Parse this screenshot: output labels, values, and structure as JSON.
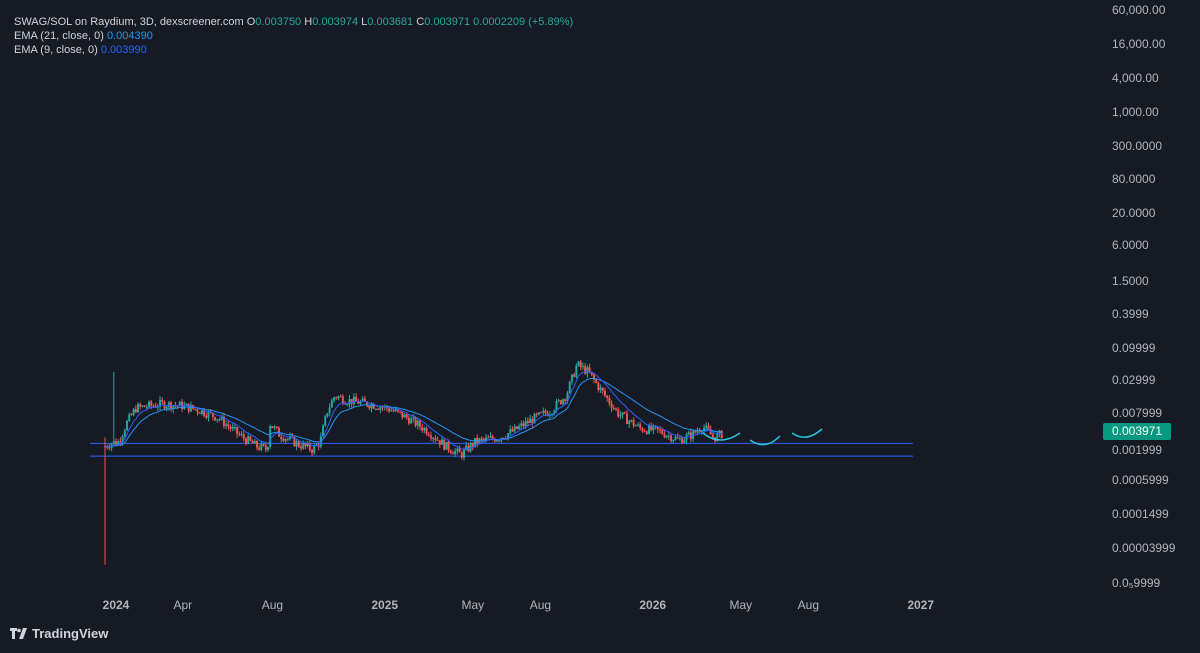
{
  "legend": {
    "title": "SWAG/SOL on Raydium, 3D, dexscreener.com",
    "ohlc": [
      {
        "key": "O",
        "value": "0.003750"
      },
      {
        "key": "H",
        "value": "0.003974"
      },
      {
        "key": "L",
        "value": "0.003681"
      },
      {
        "key": "C",
        "value": "0.003971"
      }
    ],
    "change": "0.0002209 (+5.89%)",
    "ema21_label": "EMA (21, close, 0)",
    "ema21_value": "0.004390",
    "ema9_label": "EMA (9, close, 0)",
    "ema9_value": "0.003990"
  },
  "last_price": "0.003971",
  "brand": "TradingView",
  "colors": {
    "background": "#161a25",
    "up": "#26a69a",
    "down": "#ef5350",
    "ema21": "#2962ff",
    "ema9": "#2196f3",
    "hline": "#2962ff",
    "annotation": "#26c6da",
    "badge": "#089981"
  },
  "chart_data": {
    "type": "candlestick",
    "scale": "log",
    "grid": false,
    "y_ticks": [
      "60,000.00",
      "16,000.00",
      "4,000.00",
      "1,000.00",
      "300.0000",
      "80.0000",
      "20.0000",
      "6.0000",
      "1.5000",
      "0.3999",
      "0.09999",
      "0.02999",
      "0.007999",
      "0.001999",
      "0.0005999",
      "0.0001499",
      "0.00003999",
      "0.0₅9999"
    ],
    "x_ticks": [
      {
        "label": "2024",
        "date": "2024-01-01",
        "bold": true
      },
      {
        "label": "Apr",
        "date": "2024-04-01",
        "bold": false
      },
      {
        "label": "Aug",
        "date": "2024-08-01",
        "bold": false
      },
      {
        "label": "2025",
        "date": "2025-01-01",
        "bold": true
      },
      {
        "label": "May",
        "date": "2025-05-01",
        "bold": false
      },
      {
        "label": "Aug",
        "date": "2025-08-01",
        "bold": false
      },
      {
        "label": "2026",
        "date": "2026-01-01",
        "bold": true
      },
      {
        "label": "May",
        "date": "2026-05-01",
        "bold": false
      },
      {
        "label": "Aug",
        "date": "2026-08-01",
        "bold": false
      },
      {
        "label": "2027",
        "date": "2027-01-01",
        "bold": true
      }
    ],
    "series_path": [
      {
        "date": "2023-12-17",
        "price": 0.0025
      },
      {
        "date": "2023-12-25",
        "price": 0.0028
      },
      {
        "date": "2024-01-05",
        "price": 0.003
      },
      {
        "date": "2024-01-15",
        "price": 0.006
      },
      {
        "date": "2024-01-28",
        "price": 0.011
      },
      {
        "date": "2024-02-15",
        "price": 0.012
      },
      {
        "date": "2024-03-05",
        "price": 0.013
      },
      {
        "date": "2024-04-01",
        "price": 0.012
      },
      {
        "date": "2024-04-25",
        "price": 0.01
      },
      {
        "date": "2024-05-20",
        "price": 0.0075
      },
      {
        "date": "2024-06-15",
        "price": 0.004
      },
      {
        "date": "2024-07-10",
        "price": 0.0025
      },
      {
        "date": "2024-07-25",
        "price": 0.0022
      },
      {
        "date": "2024-07-29",
        "price": 0.006
      },
      {
        "date": "2024-08-10",
        "price": 0.004
      },
      {
        "date": "2024-09-05",
        "price": 0.0027
      },
      {
        "date": "2024-09-25",
        "price": 0.0022
      },
      {
        "date": "2024-10-05",
        "price": 0.003
      },
      {
        "date": "2024-10-15",
        "price": 0.01
      },
      {
        "date": "2024-10-25",
        "price": 0.018
      },
      {
        "date": "2024-11-10",
        "price": 0.015
      },
      {
        "date": "2024-12-10",
        "price": 0.013
      },
      {
        "date": "2025-01-05",
        "price": 0.011
      },
      {
        "date": "2025-02-01",
        "price": 0.0075
      },
      {
        "date": "2025-03-01",
        "price": 0.0045
      },
      {
        "date": "2025-03-25",
        "price": 0.0025
      },
      {
        "date": "2025-04-15",
        "price": 0.0018
      },
      {
        "date": "2025-05-05",
        "price": 0.003
      },
      {
        "date": "2025-06-05",
        "price": 0.0035
      },
      {
        "date": "2025-06-25",
        "price": 0.0045
      },
      {
        "date": "2025-07-20",
        "price": 0.007
      },
      {
        "date": "2025-08-15",
        "price": 0.01
      },
      {
        "date": "2025-09-05",
        "price": 0.018
      },
      {
        "date": "2025-09-20",
        "price": 0.06
      },
      {
        "date": "2025-10-05",
        "price": 0.045
      },
      {
        "date": "2025-10-25",
        "price": 0.02
      },
      {
        "date": "2025-11-15",
        "price": 0.009
      },
      {
        "date": "2025-12-15",
        "price": 0.005
      },
      {
        "date": "2026-01-10",
        "price": 0.0045
      },
      {
        "date": "2026-02-05",
        "price": 0.0032
      },
      {
        "date": "2026-02-25",
        "price": 0.004
      },
      {
        "date": "2026-03-10",
        "price": 0.0055
      },
      {
        "date": "2026-03-25",
        "price": 0.0035
      },
      {
        "date": "2026-04-05",
        "price": 0.004
      }
    ],
    "horizontal_lines": [
      0.0028,
      0.0017
    ]
  }
}
